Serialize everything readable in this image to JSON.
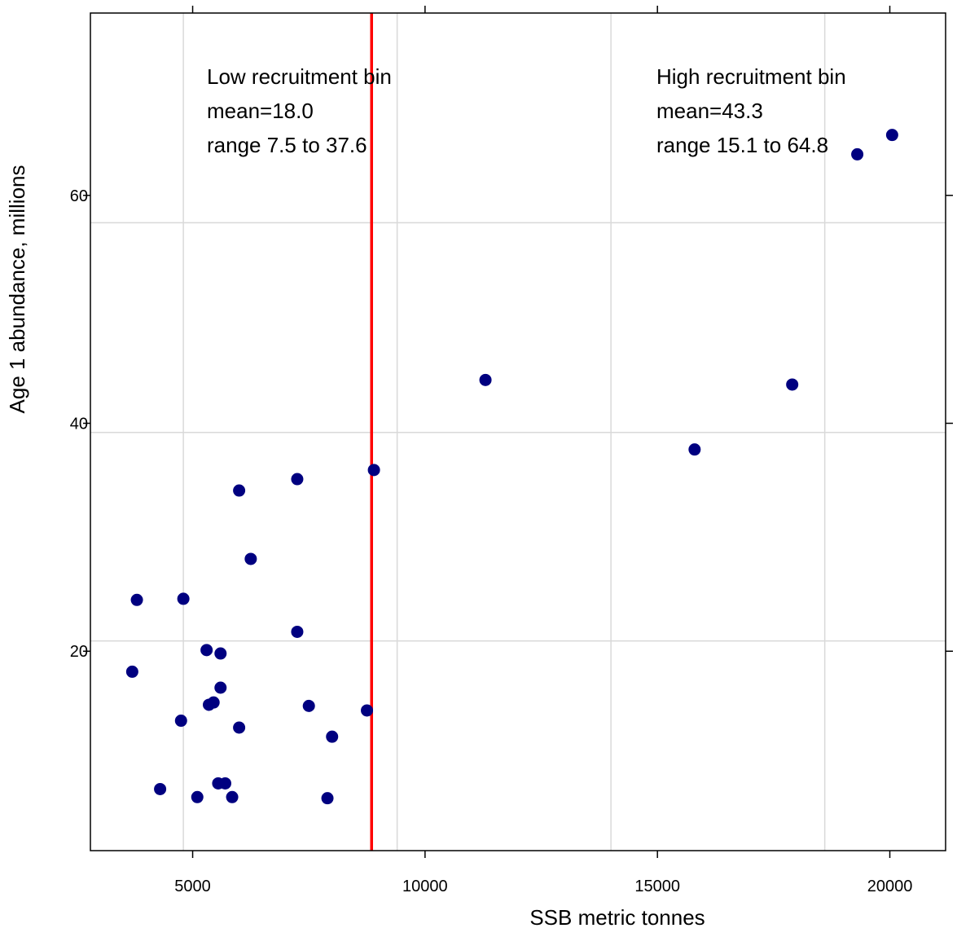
{
  "chart_data": {
    "type": "scatter",
    "xlabel": "SSB metric tonnes",
    "ylabel": "Age 1 abundance, millions",
    "xlim": [
      2800,
      21200
    ],
    "ylim": [
      2.5,
      76
    ],
    "x_ticks": [
      5000,
      10000,
      15000,
      20000
    ],
    "x_tick_labels": [
      "5000",
      "10000",
      "15000",
      "20000"
    ],
    "y_ticks": [
      20,
      40,
      60
    ],
    "y_tick_labels": [
      "20",
      "40",
      "60"
    ],
    "grid": true,
    "grid_x": [
      4800,
      9400,
      14000,
      18600
    ],
    "grid_y": [
      20.9,
      39.2,
      57.6
    ],
    "threshold_x": 8850,
    "threshold_color": "#ff0000",
    "point_color": "#000080",
    "points": [
      {
        "x": 3700,
        "y": 18.2
      },
      {
        "x": 3800,
        "y": 24.5
      },
      {
        "x": 4300,
        "y": 7.9
      },
      {
        "x": 4800,
        "y": 24.6
      },
      {
        "x": 4750,
        "y": 13.9
      },
      {
        "x": 5100,
        "y": 7.2
      },
      {
        "x": 5300,
        "y": 20.1
      },
      {
        "x": 5350,
        "y": 15.3
      },
      {
        "x": 5450,
        "y": 15.5
      },
      {
        "x": 5550,
        "y": 8.4
      },
      {
        "x": 5600,
        "y": 19.8
      },
      {
        "x": 5600,
        "y": 16.8
      },
      {
        "x": 5700,
        "y": 8.4
      },
      {
        "x": 5850,
        "y": 7.2
      },
      {
        "x": 6000,
        "y": 34.1
      },
      {
        "x": 6000,
        "y": 13.3
      },
      {
        "x": 6250,
        "y": 28.1
      },
      {
        "x": 7250,
        "y": 35.1
      },
      {
        "x": 7250,
        "y": 21.7
      },
      {
        "x": 7500,
        "y": 15.2
      },
      {
        "x": 7900,
        "y": 7.1
      },
      {
        "x": 8000,
        "y": 12.5
      },
      {
        "x": 8750,
        "y": 14.8
      },
      {
        "x": 8900,
        "y": 35.9
      },
      {
        "x": 11300,
        "y": 43.8
      },
      {
        "x": 15800,
        "y": 37.7
      },
      {
        "x": 17900,
        "y": 43.4
      },
      {
        "x": 19300,
        "y": 63.6
      },
      {
        "x": 20050,
        "y": 65.3
      }
    ],
    "annotations": {
      "low_title": "Low recruitment bin",
      "low_mean": "mean=18.0",
      "low_range": "range 7.5 to 37.6",
      "high_title": "High recruitment bin",
      "high_mean": "mean=43.3",
      "high_range": "range 15.1 to 64.8"
    }
  }
}
